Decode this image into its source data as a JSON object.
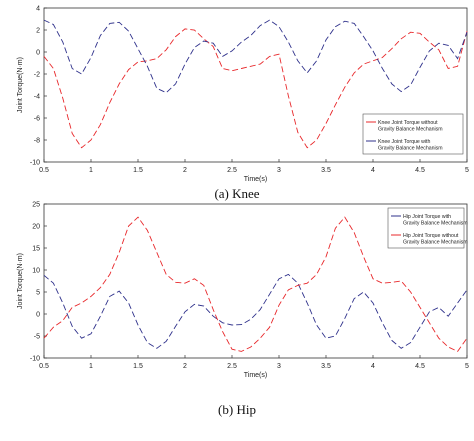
{
  "chart_data": [
    {
      "type": "line",
      "caption": "(a)  Knee",
      "xlabel": "Time(s)",
      "ylabel": "Joint Torque(N·m)",
      "xlim": [
        0.5,
        5
      ],
      "ylim": [
        -10,
        4
      ],
      "xticks": [
        "0.5",
        "1",
        "1.5",
        "2",
        "2.5",
        "3",
        "3.5",
        "4",
        "4.5",
        "5"
      ],
      "yticks": [
        "4",
        "2",
        "0",
        "-2",
        "-4",
        "-6",
        "-8",
        "-10"
      ],
      "legend_position": "lower-right",
      "x": [
        0.5,
        0.6,
        0.7,
        0.8,
        0.9,
        1.0,
        1.1,
        1.2,
        1.3,
        1.4,
        1.5,
        1.6,
        1.7,
        1.8,
        1.9,
        2.0,
        2.1,
        2.2,
        2.3,
        2.4,
        2.5,
        2.6,
        2.7,
        2.8,
        2.9,
        3.0,
        3.1,
        3.2,
        3.3,
        3.4,
        3.5,
        3.6,
        3.7,
        3.8,
        3.9,
        4.0,
        4.1,
        4.2,
        4.3,
        4.4,
        4.5,
        4.6,
        4.7,
        4.8,
        4.9,
        5.0
      ],
      "series": [
        {
          "name": "Knee Joint Torque without Gravity Balance Mechanism",
          "color": "#e8282b",
          "values": [
            -0.4,
            -1.5,
            -4.2,
            -7.4,
            -8.7,
            -8.0,
            -6.6,
            -4.6,
            -2.9,
            -1.6,
            -0.9,
            -0.8,
            -0.6,
            0.2,
            1.4,
            2.1,
            2.0,
            1.2,
            0.5,
            -1.5,
            -1.7,
            -1.5,
            -1.3,
            -1.1,
            -0.4,
            -0.2,
            -4.0,
            -7.3,
            -8.7,
            -8.0,
            -6.5,
            -4.8,
            -3.2,
            -1.9,
            -1.1,
            -0.8,
            -0.5,
            0.3,
            1.2,
            1.8,
            1.7,
            0.9,
            0.2,
            -1.5,
            -1.3,
            1.9
          ]
        },
        {
          "name": "Knee Joint Torque with Gravity Balance Mechanism",
          "color": "#2f318b",
          "values": [
            2.9,
            2.5,
            0.9,
            -1.5,
            -2.0,
            -0.5,
            1.5,
            2.6,
            2.7,
            1.9,
            0.3,
            -1.3,
            -3.3,
            -3.7,
            -2.9,
            -1.1,
            0.4,
            1.0,
            0.8,
            -0.4,
            0.1,
            0.9,
            1.5,
            2.4,
            2.9,
            2.3,
            0.9,
            -0.8,
            -1.9,
            -0.8,
            1.1,
            2.3,
            2.8,
            2.6,
            1.4,
            0.1,
            -1.5,
            -2.9,
            -3.6,
            -3.0,
            -1.4,
            0.1,
            0.8,
            0.6,
            -0.6,
            1.8
          ]
        }
      ]
    },
    {
      "type": "line",
      "caption": "(b)  Hip",
      "xlabel": "Time(s)",
      "ylabel": "Joint Torque(N·m)",
      "xlim": [
        0.5,
        5
      ],
      "ylim": [
        -10,
        25
      ],
      "xticks": [
        "0.5",
        "1",
        "1.5",
        "2",
        "2.5",
        "3",
        "3.5",
        "4",
        "4.5",
        "5"
      ],
      "yticks": [
        "25",
        "20",
        "15",
        "10",
        "5",
        "0",
        "-5",
        "-10"
      ],
      "legend_position": "top-right",
      "x": [
        0.5,
        0.6,
        0.7,
        0.8,
        0.9,
        1.0,
        1.1,
        1.2,
        1.3,
        1.4,
        1.5,
        1.6,
        1.7,
        1.8,
        1.9,
        2.0,
        2.1,
        2.2,
        2.3,
        2.4,
        2.5,
        2.6,
        2.7,
        2.8,
        2.9,
        3.0,
        3.1,
        3.2,
        3.3,
        3.4,
        3.5,
        3.6,
        3.7,
        3.8,
        3.9,
        4.0,
        4.1,
        4.2,
        4.3,
        4.4,
        4.5,
        4.6,
        4.7,
        4.8,
        4.9,
        5.0
      ],
      "series": [
        {
          "name": "Hip Joint Torque with Gravity Balance Mechanism",
          "color": "#2f318b",
          "values": [
            8.8,
            7.0,
            2.5,
            -2.8,
            -5.5,
            -4.5,
            -0.5,
            4.0,
            5.2,
            2.5,
            -2.5,
            -6.5,
            -7.8,
            -6.2,
            -2.8,
            0.5,
            2.2,
            1.8,
            -0.5,
            -2.0,
            -2.5,
            -2.4,
            -1.2,
            1.0,
            4.5,
            8.0,
            9.0,
            7.0,
            2.5,
            -2.5,
            -5.5,
            -5.0,
            -1.0,
            3.5,
            5.0,
            2.5,
            -2.0,
            -6.0,
            -7.8,
            -6.5,
            -3.0,
            0.5,
            1.5,
            -0.5,
            2.5,
            5.5
          ]
        },
        {
          "name": "Hip Joint Torque without Gravity Balance Mechanism",
          "color": "#e8282b",
          "values": [
            -5.5,
            -3.0,
            -1.5,
            1.5,
            2.5,
            4.0,
            6.0,
            9.0,
            14.0,
            20.0,
            22.0,
            19.0,
            14.0,
            9.0,
            7.2,
            7.0,
            8.0,
            6.5,
            1.0,
            -4.0,
            -8.0,
            -8.5,
            -7.5,
            -5.5,
            -3.0,
            2.0,
            5.5,
            6.5,
            7.0,
            9.0,
            13.0,
            19.5,
            22.0,
            18.5,
            13.0,
            8.0,
            7.0,
            7.2,
            7.5,
            5.0,
            1.5,
            -2.0,
            -5.5,
            -7.5,
            -8.5,
            -5.5
          ]
        }
      ]
    }
  ]
}
